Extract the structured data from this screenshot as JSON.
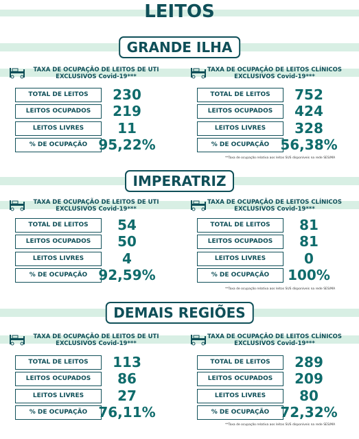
{
  "title": "LEITOS",
  "sections": [
    {
      "name": "GRANDE ILHA",
      "panels": [
        {
          "heading": [
            "TAXA DE OCUPAÇÃO DE LEITOS DE UTI",
            "EXCLUSIVOS Covid-19***"
          ],
          "rows": [
            {
              "label": "TOTAL DE LEITOS",
              "value": "230"
            },
            {
              "label": "LEITOS OCUPADOS",
              "value": "219"
            },
            {
              "label": "LEITOS LIVRES",
              "value": "11"
            },
            {
              "label": "% DE OCUPAÇÃO",
              "value": "95,22%"
            }
          ]
        },
        {
          "heading": [
            "TAXA DE OCUPAÇÃO DE LEITOS CLÍNICOS",
            "EXCLUSIVOS Covid-19***"
          ],
          "rows": [
            {
              "label": "TOTAL DE LEITOS",
              "value": "752"
            },
            {
              "label": "LEITOS OCUPADOS",
              "value": "424"
            },
            {
              "label": "LEITOS LIVRES",
              "value": "328"
            },
            {
              "label": "% DE OCUPAÇÃO",
              "value": "56,38%"
            }
          ]
        }
      ],
      "footnote": "**Taxa de ocupação relativa aos leitos SUS disponíveis na rede SES/MA"
    },
    {
      "name": "IMPERATRIZ",
      "panels": [
        {
          "heading": [
            "TAXA DE OCUPAÇÃO DE LEITOS DE UTI",
            "EXCLUSIVOS Covid-19***"
          ],
          "rows": [
            {
              "label": "TOTAL DE LEITOS",
              "value": "54"
            },
            {
              "label": "LEITOS OCUPADOS",
              "value": "50"
            },
            {
              "label": "LEITOS LIVRES",
              "value": "4"
            },
            {
              "label": "% DE OCUPAÇÃO",
              "value": "92,59%"
            }
          ]
        },
        {
          "heading": [
            "TAXA DE OCUPAÇÃO DE LEITOS CLÍNICOS",
            "EXCLUSIVOS Covid-19***"
          ],
          "rows": [
            {
              "label": "TOTAL DE LEITOS",
              "value": "81"
            },
            {
              "label": "LEITOS OCUPADOS",
              "value": "81"
            },
            {
              "label": "LEITOS LIVRES",
              "value": "0"
            },
            {
              "label": "% DE OCUPAÇÃO",
              "value": "100%"
            }
          ]
        }
      ],
      "footnote": "**Taxa de ocupação relativa aos leitos SUS disponíveis na rede SES/MA"
    },
    {
      "name": "DEMAIS REGIÕES",
      "panels": [
        {
          "heading": [
            "TAXA DE OCUPAÇÃO DE LEITOS DE UTI",
            "EXCLUSIVOS Covid-19***"
          ],
          "rows": [
            {
              "label": "TOTAL DE LEITOS",
              "value": "113"
            },
            {
              "label": "LEITOS OCUPADOS",
              "value": "86"
            },
            {
              "label": "LEITOS LIVRES",
              "value": "27"
            },
            {
              "label": "% DE OCUPAÇÃO",
              "value": "76,11%"
            }
          ]
        },
        {
          "heading": [
            "TAXA DE OCUPAÇÃO DE LEITOS CLÍNICOS",
            "EXCLUSIVOS Covid-19***"
          ],
          "rows": [
            {
              "label": "TOTAL DE LEITOS",
              "value": "289"
            },
            {
              "label": "LEITOS OCUPADOS",
              "value": "209"
            },
            {
              "label": "LEITOS LIVRES",
              "value": "80"
            },
            {
              "label": "% DE OCUPAÇÃO",
              "value": "72,32%"
            }
          ]
        }
      ],
      "footnote": "**Taxa de ocupação relativa aos leitos SUS disponíveis na rede SES/MA"
    }
  ]
}
